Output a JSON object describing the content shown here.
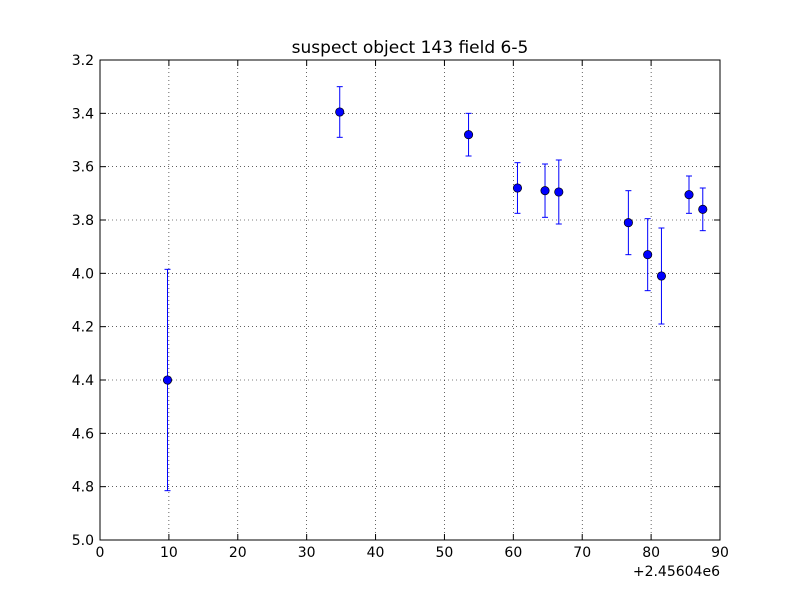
{
  "chart_data": {
    "type": "scatter",
    "title": "suspect object 143 field 6-5",
    "xlabel": "",
    "ylabel": "",
    "x_offset_label": "+2.45604e6",
    "xlim": [
      0,
      90
    ],
    "ylim": [
      3.2,
      5.0
    ],
    "y_inverted": true,
    "grid": true,
    "x_ticks": [
      0,
      10,
      20,
      30,
      40,
      50,
      60,
      70,
      80,
      90
    ],
    "x_tick_labels": [
      "0",
      "10",
      "20",
      "30",
      "40",
      "50",
      "60",
      "70",
      "80",
      "90"
    ],
    "y_ticks": [
      3.2,
      3.4,
      3.6,
      3.8,
      4.0,
      4.2,
      4.4,
      4.6,
      4.8,
      5.0
    ],
    "y_tick_labels": [
      "3.2",
      "3.4",
      "3.6",
      "3.8",
      "4.0",
      "4.2",
      "4.4",
      "4.6",
      "4.8",
      "5.0"
    ],
    "series": [
      {
        "color": "#0000ff",
        "marker": "circle",
        "error_bars": "vertical",
        "points": [
          {
            "x": 9.8,
            "y": 4.4,
            "err": 0.415
          },
          {
            "x": 34.8,
            "y": 3.395,
            "err": 0.095
          },
          {
            "x": 53.5,
            "y": 3.48,
            "err": 0.08
          },
          {
            "x": 60.6,
            "y": 3.68,
            "err": 0.095
          },
          {
            "x": 64.6,
            "y": 3.69,
            "err": 0.1
          },
          {
            "x": 66.6,
            "y": 3.695,
            "err": 0.12
          },
          {
            "x": 76.7,
            "y": 3.81,
            "err": 0.12
          },
          {
            "x": 79.5,
            "y": 3.93,
            "err": 0.135
          },
          {
            "x": 81.5,
            "y": 4.01,
            "err": 0.18
          },
          {
            "x": 85.5,
            "y": 3.705,
            "err": 0.07
          },
          {
            "x": 87.5,
            "y": 3.76,
            "err": 0.08
          }
        ]
      }
    ]
  }
}
